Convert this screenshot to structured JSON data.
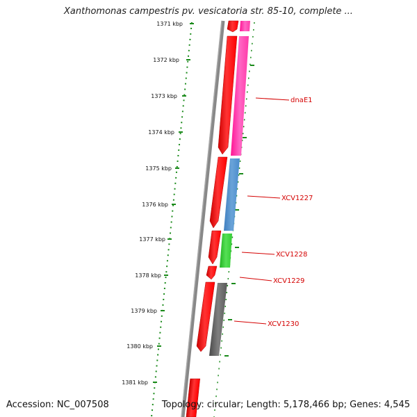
{
  "title": "Xanthomonas campestris pv. vesicatoria str. 85-10, complete ...",
  "footer": {
    "accession": "Accession: NC_007508",
    "summary": "Topology: circular; Length: 5,178,466 bp; Genes: 4,545"
  },
  "ruler": {
    "ticks": [
      "1371 kbp",
      "1372 kbp",
      "1373 kbp",
      "1374 kbp",
      "1375 kbp",
      "1376 kbp",
      "1377 kbp",
      "1378 kbp",
      "1379 kbp",
      "1380 kbp",
      "1381 kbp"
    ]
  },
  "gene_labels": [
    "dnaE1",
    "XCV1227",
    "XCV1228",
    "XCV1229",
    "XCV1230"
  ],
  "colors": {
    "backbone": "#888888",
    "ruler_dots": "#1a8a1a",
    "cds": "#ff0000",
    "gene_dnaE1": "#ff33aa",
    "gene_XCV1227": "#4a8ccc",
    "gene_XCV1228": "#33cc33",
    "gene_XCV1230": "#666666",
    "label": "#d40000"
  }
}
